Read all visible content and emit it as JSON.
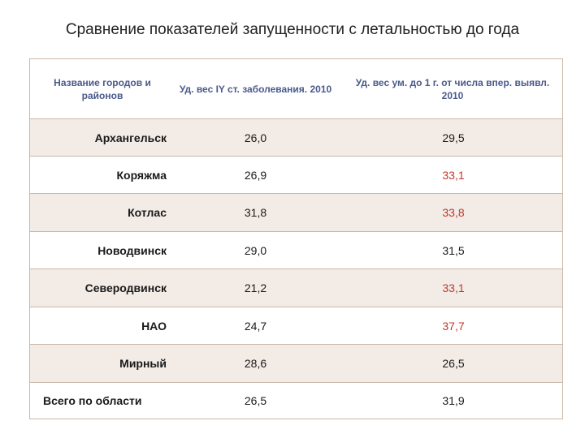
{
  "title": "Сравнение показателей запущенности с летальностью до года",
  "table": {
    "headers": [
      "Название городов и районов",
      "Уд. вес IY ст. заболевания. 2010",
      "Уд. вес ум. до 1 г. от числа впер. выявл. 2010"
    ],
    "rows": [
      {
        "name": "Архангельск",
        "v1": "26,0",
        "v2": "29,5"
      },
      {
        "name": "Коряжма",
        "v1": "26,9",
        "v2": "33,1"
      },
      {
        "name": "Котлас",
        "v1": "31,8",
        "v2": "33,8"
      },
      {
        "name": "Новодвинск",
        "v1": "29,0",
        "v2": "31,5"
      },
      {
        "name": "Северодвинск",
        "v1": "21,2",
        "v2": "33,1"
      },
      {
        "name": "НАО",
        "v1": "24,7",
        "v2": "37,7"
      },
      {
        "name": "Мирный",
        "v1": "28,6",
        "v2": "26,5"
      },
      {
        "name": "Всего по области",
        "v1": "26,5",
        "v2": "31,9"
      }
    ],
    "highlight_color": "#c0392b"
  }
}
